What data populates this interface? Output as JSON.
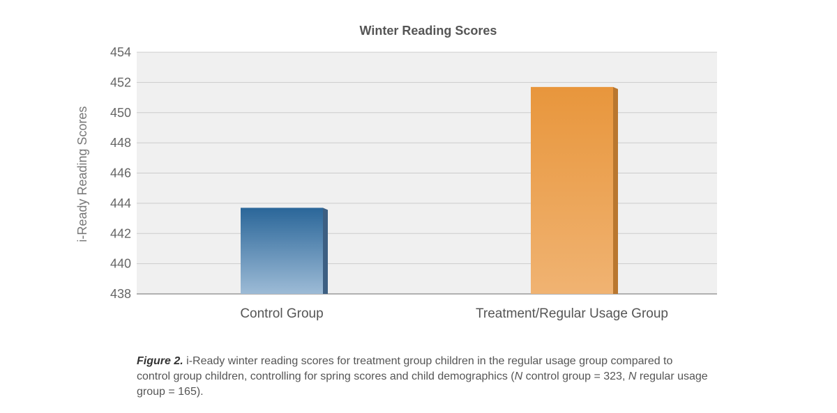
{
  "chart_data": {
    "type": "bar",
    "title": "Winter Reading Scores",
    "xlabel": "",
    "ylabel": "i-Ready Reading Scores",
    "categories": [
      "Control Group",
      "Treatment/Regular Usage Group"
    ],
    "values": [
      443.7,
      451.7
    ],
    "ylim": [
      438,
      454
    ],
    "yticks": [
      438,
      440,
      442,
      444,
      446,
      448,
      450,
      452,
      454
    ],
    "grid": true,
    "legend": "none",
    "colors": [
      "#2d6a9c",
      "#e8963c"
    ]
  },
  "caption": {
    "lead": "Figure 2.",
    "part1": " i-Ready winter reading scores for treatment group children in the regular usage group compared to control group children, controlling for spring scores and child demographics (",
    "n1": "N",
    "part2": " control group = 323, ",
    "n2": "N",
    "part3": " regular usage group = 165)."
  }
}
